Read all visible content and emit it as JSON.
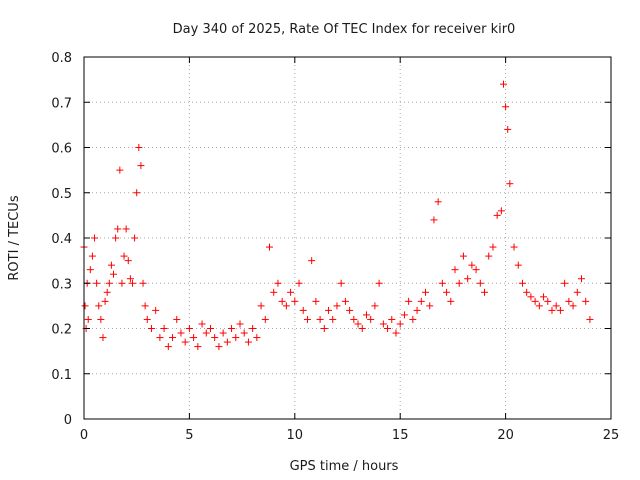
{
  "chart_data": {
    "type": "scatter",
    "title": "Day 340 of 2025, Rate Of TEC Index for receiver kir0",
    "xlabel": "GPS time / hours",
    "ylabel": "ROTI / TECUs",
    "xlim": [
      0,
      25
    ],
    "ylim": [
      0,
      0.8
    ],
    "x_ticks": [
      "0",
      "5",
      "10",
      "15",
      "20",
      "25"
    ],
    "y_ticks": [
      "0",
      "0.1",
      "0.2",
      "0.3",
      "0.4",
      "0.5",
      "0.6",
      "0.7",
      "0.8"
    ],
    "grid": true,
    "marker": "+",
    "color": "#ff0000",
    "series": [
      {
        "x": [
          0.0,
          0.05,
          0.1,
          0.15,
          0.2,
          0.3,
          0.4,
          0.5,
          0.6,
          0.7,
          0.8,
          0.9,
          1.0,
          1.1,
          1.2,
          1.3,
          1.4,
          1.5,
          1.6,
          1.7,
          1.8,
          1.9,
          2.0,
          2.1,
          2.2,
          2.3,
          2.4,
          2.5,
          2.6,
          2.7,
          2.8,
          2.9,
          3.0,
          3.2,
          3.4,
          3.6,
          3.8,
          4.0,
          4.2,
          4.4,
          4.6,
          4.8,
          5.0,
          5.2,
          5.4,
          5.6,
          5.8,
          6.0,
          6.2,
          6.4,
          6.6,
          6.8,
          7.0,
          7.2,
          7.4,
          7.6,
          7.8,
          8.0,
          8.2,
          8.4,
          8.6,
          8.8,
          9.0,
          9.2,
          9.4,
          9.6,
          9.8,
          10.0,
          10.2,
          10.4,
          10.6,
          10.8,
          11.0,
          11.2,
          11.4,
          11.6,
          11.8,
          12.0,
          12.2,
          12.4,
          12.6,
          12.8,
          13.0,
          13.2,
          13.4,
          13.6,
          13.8,
          14.0,
          14.2,
          14.4,
          14.6,
          14.8,
          15.0,
          15.2,
          15.4,
          15.6,
          15.8,
          16.0,
          16.2,
          16.4,
          16.6,
          16.8,
          17.0,
          17.2,
          17.4,
          17.6,
          17.8,
          18.0,
          18.2,
          18.4,
          18.6,
          18.8,
          19.0,
          19.2,
          19.4,
          19.6,
          19.8,
          19.9,
          20.0,
          20.1,
          20.2,
          20.4,
          20.6,
          20.8,
          21.0,
          21.2,
          21.4,
          21.6,
          21.8,
          22.0,
          22.2,
          22.4,
          22.6,
          22.8,
          23.0,
          23.2,
          23.4,
          23.6,
          23.8,
          24.0
        ],
        "y": [
          0.38,
          0.25,
          0.2,
          0.3,
          0.22,
          0.33,
          0.36,
          0.4,
          0.3,
          0.25,
          0.22,
          0.18,
          0.26,
          0.28,
          0.3,
          0.34,
          0.32,
          0.4,
          0.42,
          0.55,
          0.3,
          0.36,
          0.42,
          0.35,
          0.31,
          0.3,
          0.4,
          0.5,
          0.6,
          0.56,
          0.3,
          0.25,
          0.22,
          0.2,
          0.24,
          0.18,
          0.2,
          0.16,
          0.18,
          0.22,
          0.19,
          0.17,
          0.2,
          0.18,
          0.16,
          0.21,
          0.19,
          0.2,
          0.18,
          0.16,
          0.19,
          0.17,
          0.2,
          0.18,
          0.21,
          0.19,
          0.17,
          0.2,
          0.18,
          0.25,
          0.22,
          0.38,
          0.28,
          0.3,
          0.26,
          0.25,
          0.28,
          0.26,
          0.3,
          0.24,
          0.22,
          0.35,
          0.26,
          0.22,
          0.2,
          0.24,
          0.22,
          0.25,
          0.3,
          0.26,
          0.24,
          0.22,
          0.21,
          0.2,
          0.23,
          0.22,
          0.25,
          0.3,
          0.21,
          0.2,
          0.22,
          0.19,
          0.21,
          0.23,
          0.26,
          0.22,
          0.24,
          0.26,
          0.28,
          0.25,
          0.44,
          0.48,
          0.3,
          0.28,
          0.26,
          0.33,
          0.3,
          0.36,
          0.31,
          0.34,
          0.33,
          0.3,
          0.28,
          0.36,
          0.38,
          0.45,
          0.46,
          0.74,
          0.69,
          0.64,
          0.52,
          0.38,
          0.34,
          0.3,
          0.28,
          0.27,
          0.26,
          0.25,
          0.27,
          0.26,
          0.24,
          0.25,
          0.24,
          0.3,
          0.26,
          0.25,
          0.28,
          0.31,
          0.26,
          0.22
        ]
      }
    ]
  }
}
